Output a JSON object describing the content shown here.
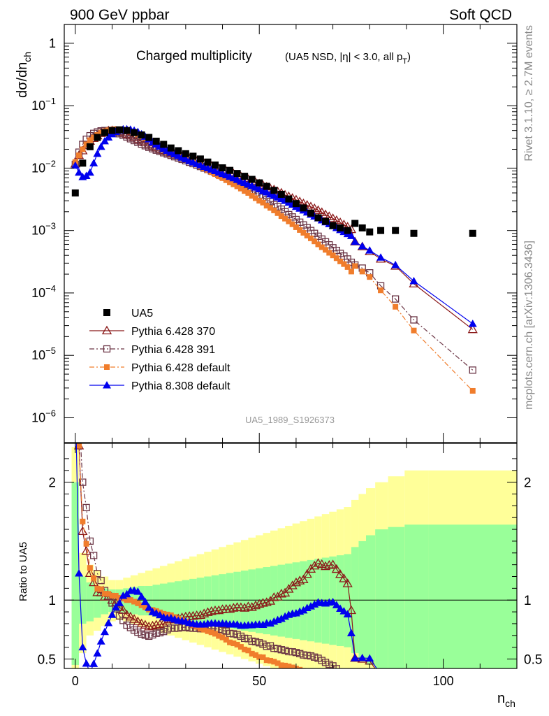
{
  "header": {
    "left": "900 GeV ppbar",
    "right": "Soft QCD"
  },
  "side": {
    "top": "Rivet 3.1.10, ≥ 2.7M events",
    "bottom": "mcplots.cern.ch [arXiv:1306.3436]"
  },
  "watermark": "UA5_1989_S1926373",
  "chart_data": {
    "type": "scatter",
    "title": "Charged multiplicity",
    "subtitle": "(UA5 NSD, |η| < 3.0, all p",
    "subtitle_sub": "T",
    "xlabel": "n",
    "xlabel_sub": "ch",
    "ylabel": "dσ/dn",
    "ylabel_sub": "ch",
    "ratio_ylabel": "Ratio to UA5",
    "xlim": [
      -3,
      120
    ],
    "ylim": [
      4e-07,
      2
    ],
    "log_y": true,
    "ratio_ylim": [
      0.42,
      2.33
    ],
    "x_ticks": [
      0,
      50,
      100
    ],
    "legend_position": "bottom-left",
    "series": [
      {
        "name": "UA5",
        "color": "#000000",
        "marker": "square-filled",
        "line": "none",
        "x": [
          0,
          2,
          4,
          6,
          8,
          10,
          12,
          14,
          16,
          18,
          20,
          22,
          24,
          26,
          28,
          30,
          32,
          34,
          36,
          38,
          40,
          42,
          44,
          46,
          48,
          50,
          52,
          54,
          56,
          58,
          60,
          62,
          64,
          66,
          68,
          70,
          72,
          74,
          76,
          78,
          80,
          83,
          87,
          92,
          108
        ],
        "y": [
          0.004,
          0.012,
          0.022,
          0.031,
          0.037,
          0.04,
          0.041,
          0.04,
          0.037,
          0.034,
          0.031,
          0.027,
          0.024,
          0.021,
          0.019,
          0.017,
          0.0155,
          0.014,
          0.0125,
          0.0112,
          0.0101,
          0.0092,
          0.0082,
          0.0074,
          0.0066,
          0.0058,
          0.0051,
          0.0044,
          0.0038,
          0.0032,
          0.0027,
          0.0023,
          0.0019,
          0.0016,
          0.0014,
          0.0012,
          0.0011,
          0.001,
          0.0013,
          0.0011,
          0.00095,
          0.001,
          0.001,
          0.0009,
          0.0009
        ]
      },
      {
        "name": "Pythia 6.428 370",
        "color": "#8b1a1a",
        "marker": "triangle-open",
        "line": "solid",
        "x": [
          0,
          1,
          2,
          3,
          4,
          5,
          6,
          7,
          8,
          9,
          10,
          11,
          12,
          13,
          14,
          15,
          16,
          17,
          18,
          19,
          20,
          21,
          22,
          23,
          24,
          25,
          26,
          27,
          28,
          29,
          30,
          31,
          32,
          33,
          34,
          35,
          36,
          37,
          38,
          39,
          40,
          41,
          42,
          43,
          44,
          45,
          46,
          47,
          48,
          49,
          50,
          51,
          52,
          53,
          54,
          55,
          56,
          57,
          58,
          59,
          60,
          61,
          62,
          63,
          64,
          65,
          66,
          67,
          68,
          69,
          70,
          71,
          72,
          73,
          74,
          75,
          76,
          78,
          80,
          83,
          87,
          92,
          108
        ],
        "y": [
          0.0117,
          0.016,
          0.019,
          0.023,
          0.027,
          0.03,
          0.033,
          0.036,
          0.038,
          0.0397,
          0.04,
          0.0395,
          0.0385,
          0.037,
          0.035,
          0.033,
          0.031,
          0.029,
          0.0272,
          0.0256,
          0.024,
          0.0226,
          0.0213,
          0.0202,
          0.0192,
          0.0183,
          0.0175,
          0.0167,
          0.016,
          0.0153,
          0.0146,
          0.014,
          0.0134,
          0.0128,
          0.0122,
          0.0117,
          0.0112,
          0.0107,
          0.0102,
          0.0097,
          0.0093,
          0.0089,
          0.0085,
          0.0081,
          0.0077,
          0.0073,
          0.0069,
          0.0066,
          0.0062,
          0.0059,
          0.0056,
          0.0053,
          0.005,
          0.0047,
          0.0045,
          0.0042,
          0.004,
          0.0037,
          0.0035,
          0.0033,
          0.0031,
          0.0029,
          0.0027,
          0.00255,
          0.0024,
          0.00225,
          0.0021,
          0.00195,
          0.0018,
          0.00168,
          0.00156,
          0.00145,
          0.00134,
          0.00124,
          0.00114,
          0.00104,
          0.00066,
          0.00055,
          0.00046,
          0.00035,
          0.00027,
          0.00014,
          2.6e-05
        ]
      },
      {
        "name": "Pythia 6.428 391",
        "color": "#6b3545",
        "marker": "square-open",
        "line": "dashdot",
        "x": [
          0,
          1,
          2,
          3,
          4,
          5,
          6,
          7,
          8,
          9,
          10,
          11,
          12,
          13,
          14,
          15,
          16,
          17,
          18,
          19,
          20,
          21,
          22,
          23,
          24,
          25,
          26,
          27,
          28,
          29,
          30,
          31,
          32,
          33,
          34,
          35,
          36,
          37,
          38,
          39,
          40,
          41,
          42,
          43,
          44,
          45,
          46,
          47,
          48,
          49,
          50,
          51,
          52,
          53,
          54,
          55,
          56,
          57,
          58,
          59,
          60,
          61,
          62,
          63,
          64,
          65,
          66,
          67,
          68,
          69,
          70,
          71,
          72,
          73,
          74,
          75,
          76,
          78,
          80,
          83,
          87,
          92,
          108
        ],
        "y": [
          0.0115,
          0.018,
          0.024,
          0.029,
          0.033,
          0.036,
          0.038,
          0.0395,
          0.04,
          0.0398,
          0.039,
          0.0375,
          0.0355,
          0.0335,
          0.0315,
          0.0295,
          0.0276,
          0.0258,
          0.0242,
          0.0228,
          0.0215,
          0.0204,
          0.0194,
          0.0184,
          0.0176,
          0.0168,
          0.016,
          0.0152,
          0.0145,
          0.0138,
          0.0131,
          0.0124,
          0.0118,
          0.0112,
          0.0106,
          0.01,
          0.0095,
          0.009,
          0.0085,
          0.008,
          0.0075,
          0.0071,
          0.0066,
          0.0062,
          0.0058,
          0.0054,
          0.005,
          0.0047,
          0.0043,
          0.004,
          0.0037,
          0.0034,
          0.0031,
          0.0029,
          0.0026,
          0.0024,
          0.0022,
          0.002,
          0.0018,
          0.00165,
          0.0015,
          0.00136,
          0.00123,
          0.00111,
          0.001,
          0.0009,
          0.00081,
          0.00073,
          0.00066,
          0.00059,
          0.00053,
          0.00048,
          0.00043,
          0.00039,
          0.00035,
          0.00031,
          0.00028,
          0.00025,
          0.00021,
          0.00013,
          8e-05,
          3.7e-05,
          5.8e-06
        ]
      },
      {
        "name": "Pythia 6.428 default",
        "color": "#f07d2c",
        "marker": "square-filled-small",
        "line": "dashdot",
        "x": [
          0,
          1,
          2,
          3,
          4,
          5,
          6,
          7,
          8,
          9,
          10,
          11,
          12,
          13,
          14,
          15,
          16,
          17,
          18,
          19,
          20,
          21,
          22,
          23,
          24,
          25,
          26,
          27,
          28,
          29,
          30,
          31,
          32,
          33,
          34,
          35,
          36,
          37,
          38,
          39,
          40,
          41,
          42,
          43,
          44,
          45,
          46,
          47,
          48,
          49,
          50,
          51,
          52,
          53,
          54,
          55,
          56,
          57,
          58,
          59,
          60,
          61,
          62,
          63,
          64,
          65,
          66,
          67,
          68,
          69,
          70,
          71,
          72,
          73,
          74,
          75,
          76,
          78,
          80,
          83,
          87,
          92,
          108
        ],
        "y": [
          0.0125,
          0.016,
          0.02,
          0.024,
          0.028,
          0.031,
          0.034,
          0.037,
          0.039,
          0.0405,
          0.0415,
          0.042,
          0.0418,
          0.041,
          0.04,
          0.0385,
          0.0365,
          0.0345,
          0.0325,
          0.0305,
          0.0285,
          0.0265,
          0.0245,
          0.0228,
          0.0212,
          0.0197,
          0.0183,
          0.0171,
          0.016,
          0.0149,
          0.0139,
          0.013,
          0.0122,
          0.0114,
          0.0106,
          0.0099,
          0.0092,
          0.0086,
          0.008,
          0.0074,
          0.0069,
          0.0064,
          0.0059,
          0.0055,
          0.0051,
          0.0047,
          0.0043,
          0.004,
          0.0036,
          0.0033,
          0.003,
          0.0028,
          0.0025,
          0.0023,
          0.0021,
          0.0019,
          0.0017,
          0.00155,
          0.0014,
          0.00126,
          0.00113,
          0.00102,
          0.00092,
          0.00083,
          0.00075,
          0.00067,
          0.0006,
          0.00054,
          0.00049,
          0.00044,
          0.0004,
          0.00036,
          0.00032,
          0.00029,
          0.00026,
          0.00022,
          0.00027,
          0.00022,
          0.00018,
          0.00011,
          6e-05,
          2.5e-05,
          2.7e-06
        ]
      },
      {
        "name": "Pythia 8.308 default",
        "color": "#0000ee",
        "marker": "triangle-filled",
        "line": "solid",
        "x": [
          0,
          1,
          2,
          3,
          4,
          5,
          6,
          7,
          8,
          9,
          10,
          11,
          12,
          13,
          14,
          15,
          16,
          17,
          18,
          19,
          20,
          21,
          22,
          23,
          24,
          25,
          26,
          27,
          28,
          29,
          30,
          31,
          32,
          33,
          34,
          35,
          36,
          37,
          38,
          39,
          40,
          41,
          42,
          43,
          44,
          45,
          46,
          47,
          48,
          49,
          50,
          51,
          52,
          53,
          54,
          55,
          56,
          57,
          58,
          59,
          60,
          61,
          62,
          63,
          64,
          65,
          66,
          67,
          68,
          69,
          70,
          71,
          72,
          73,
          74,
          75,
          76,
          78,
          80,
          83,
          87,
          92,
          108
        ],
        "y": [
          0.011,
          0.0085,
          0.0072,
          0.0075,
          0.0085,
          0.012,
          0.017,
          0.022,
          0.027,
          0.031,
          0.035,
          0.038,
          0.04,
          0.042,
          0.042,
          0.0415,
          0.04,
          0.038,
          0.035,
          0.032,
          0.029,
          0.026,
          0.024,
          0.0222,
          0.0205,
          0.019,
          0.0178,
          0.0167,
          0.0157,
          0.0148,
          0.0139,
          0.0131,
          0.0124,
          0.0117,
          0.0111,
          0.0105,
          0.01,
          0.0095,
          0.009,
          0.0085,
          0.0081,
          0.0077,
          0.0073,
          0.0069,
          0.0065,
          0.0061,
          0.0058,
          0.0055,
          0.0052,
          0.0049,
          0.0046,
          0.0043,
          0.0041,
          0.0038,
          0.0036,
          0.0034,
          0.0032,
          0.003,
          0.0028,
          0.0026,
          0.0024,
          0.00225,
          0.0021,
          0.00195,
          0.0018,
          0.00168,
          0.00157,
          0.00146,
          0.00136,
          0.00127,
          0.00118,
          0.0011,
          0.00102,
          0.00095,
          0.00088,
          0.00082,
          0.00066,
          0.00056,
          0.00048,
          0.00037,
          0.00028,
          0.000155,
          3.2e-05
        ]
      }
    ],
    "ratio_band": {
      "x_edges": [
        -1,
        1,
        3,
        5,
        7,
        9,
        11,
        13,
        15,
        17,
        19,
        21,
        23,
        25,
        27,
        29,
        31,
        33,
        35,
        37,
        39,
        41,
        43,
        45,
        47,
        49,
        51,
        53,
        55,
        57,
        59,
        61,
        63,
        65,
        67,
        69,
        71,
        73,
        75,
        77,
        79,
        81.5,
        85,
        89.5,
        96,
        120
      ],
      "green_lo": [
        0.45,
        0.8,
        0.82,
        0.85,
        0.88,
        0.9,
        0.9,
        0.89,
        0.88,
        0.87,
        0.87,
        0.86,
        0.85,
        0.84,
        0.83,
        0.82,
        0.81,
        0.8,
        0.79,
        0.78,
        0.77,
        0.76,
        0.75,
        0.74,
        0.73,
        0.72,
        0.71,
        0.7,
        0.69,
        0.68,
        0.67,
        0.66,
        0.65,
        0.64,
        0.63,
        0.62,
        0.61,
        0.6,
        0.55,
        0.5,
        0.45,
        0.4,
        0.36,
        0.36,
        0.38
      ],
      "green_hi": [
        2.0,
        1.2,
        1.15,
        1.12,
        1.1,
        1.09,
        1.09,
        1.1,
        1.11,
        1.12,
        1.12,
        1.13,
        1.14,
        1.15,
        1.16,
        1.17,
        1.18,
        1.19,
        1.2,
        1.21,
        1.22,
        1.23,
        1.24,
        1.25,
        1.26,
        1.27,
        1.28,
        1.29,
        1.3,
        1.31,
        1.32,
        1.33,
        1.34,
        1.35,
        1.36,
        1.37,
        1.38,
        1.39,
        1.45,
        1.5,
        1.55,
        1.6,
        1.62,
        1.64,
        1.64
      ],
      "yellow_lo": [
        0.4,
        0.55,
        0.7,
        0.74,
        0.78,
        0.82,
        0.83,
        0.82,
        0.8,
        0.78,
        0.76,
        0.74,
        0.72,
        0.7,
        0.68,
        0.66,
        0.64,
        0.62,
        0.6,
        0.58,
        0.56,
        0.54,
        0.52,
        0.5,
        0.48,
        0.46,
        0.44,
        0.42,
        0.4,
        0.4,
        0.4,
        0.4,
        0.4,
        0.4,
        0.4,
        0.4,
        0.4,
        0.4,
        0.4,
        0.4,
        0.4,
        0.4,
        0.4,
        0.4,
        0.4
      ],
      "yellow_hi": [
        2.3,
        1.4,
        1.3,
        1.25,
        1.2,
        1.17,
        1.17,
        1.19,
        1.21,
        1.23,
        1.25,
        1.27,
        1.29,
        1.31,
        1.33,
        1.35,
        1.37,
        1.39,
        1.41,
        1.43,
        1.45,
        1.47,
        1.49,
        1.51,
        1.53,
        1.55,
        1.57,
        1.59,
        1.61,
        1.63,
        1.65,
        1.67,
        1.69,
        1.71,
        1.73,
        1.75,
        1.77,
        1.79,
        1.85,
        1.9,
        1.95,
        2.0,
        2.05,
        2.1,
        2.1
      ]
    }
  }
}
